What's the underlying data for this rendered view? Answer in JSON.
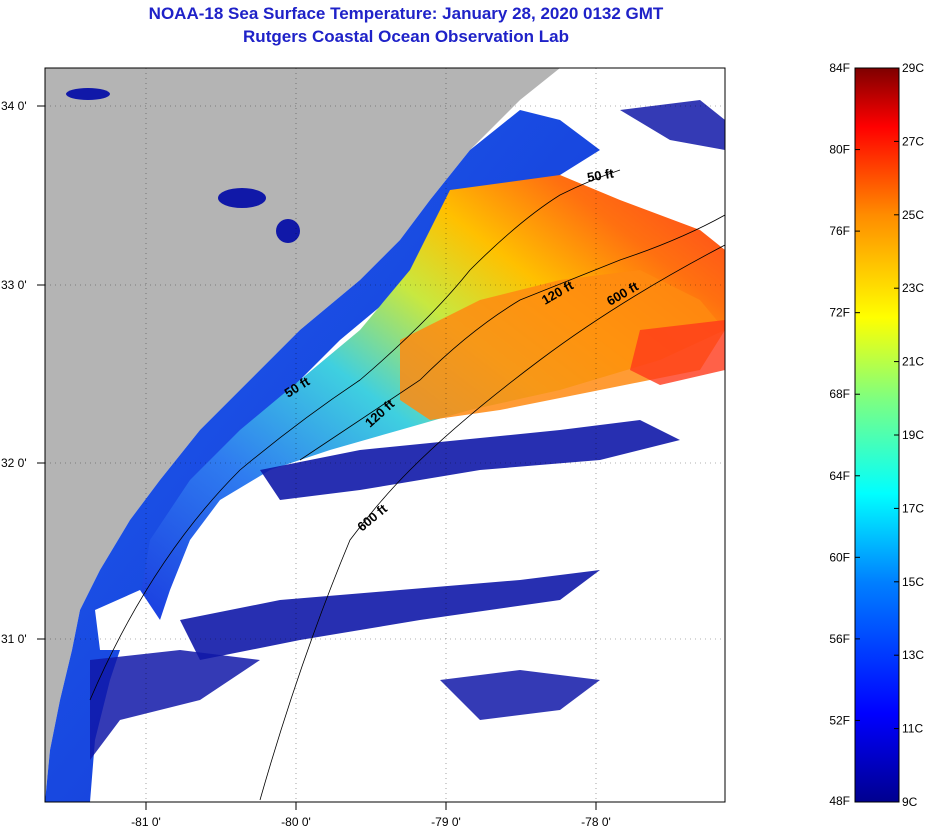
{
  "header": {
    "title": "NOAA-18 Sea Surface Temperature:  January 28, 2020 0132 GMT",
    "subtitle": "Rutgers Coastal Ocean Observation Lab"
  },
  "map": {
    "lon_ticks": [
      "-81 0'",
      "-80 0'",
      "-79 0'",
      "-78 0'"
    ],
    "lat_ticks": [
      "34 0'",
      "33 0'",
      "32 0'",
      "31 0'"
    ],
    "contours": [
      {
        "label": "50 ft"
      },
      {
        "label": "50 ft"
      },
      {
        "label": "120 ft"
      },
      {
        "label": "120 ft"
      },
      {
        "label": "600 ft"
      },
      {
        "label": "600 ft"
      }
    ]
  },
  "colorbar": {
    "fahrenheit": [
      "84F",
      "80F",
      "76F",
      "72F",
      "68F",
      "64F",
      "60F",
      "56F",
      "52F",
      "48F"
    ],
    "celsius": [
      "29C",
      "27C",
      "25C",
      "23C",
      "21C",
      "19C",
      "17C",
      "15C",
      "13C",
      "11C",
      "9C"
    ],
    "colors": [
      "#7f0000",
      "#ff0000",
      "#ff8c00",
      "#ffff00",
      "#7fff7f",
      "#00ffff",
      "#0080ff",
      "#0000ff",
      "#00008f"
    ]
  },
  "colors": {
    "land": "#b4b4b4",
    "cloud": "#ffffff",
    "title": "#1f22c8"
  }
}
